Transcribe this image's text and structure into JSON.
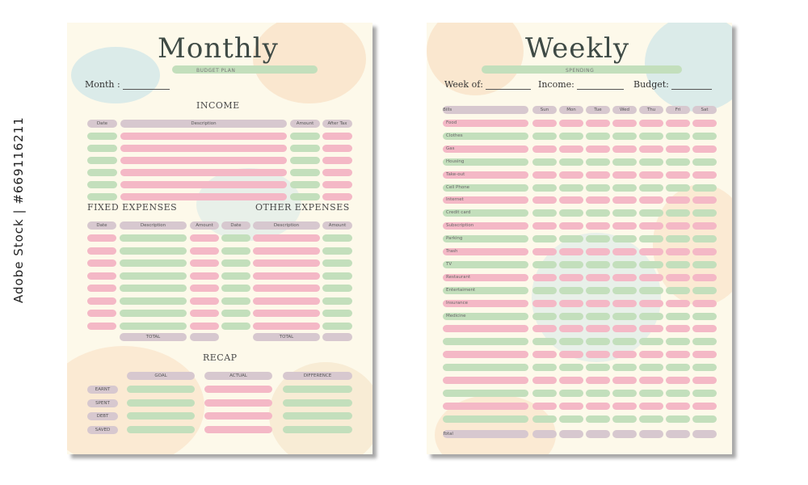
{
  "watermark": "Adobe Stock | #669116211",
  "colors": {
    "paper": "#fdf9ea",
    "pink": "#f4b8c6",
    "green": "#c3dfbc",
    "header": "#d7c8cf",
    "peach": "#f8d8b8",
    "blue": "#bfe0e8"
  },
  "monthly": {
    "title": "Monthly",
    "subtitle": "BUDGET PLAN",
    "month_label": "Month :",
    "income": {
      "heading": "INCOME",
      "columns": [
        "Date",
        "Description",
        "Amount",
        "After Tax"
      ],
      "row_count": 6
    },
    "fixed": {
      "heading": "FIXED EXPENSES",
      "columns": [
        "Date",
        "Description",
        "Amount"
      ],
      "total_label": "TOTAL",
      "row_count": 8
    },
    "other": {
      "heading": "OTHER EXPENSES",
      "columns": [
        "Date",
        "Description",
        "Amount"
      ],
      "total_label": "TOTAL",
      "row_count": 8
    },
    "recap": {
      "heading": "RECAP",
      "columns": [
        "GOAL",
        "ACTUAL",
        "DIFFERENCE"
      ],
      "rows": [
        "EARNT",
        "SPENT",
        "DEBT",
        "SAVED"
      ]
    }
  },
  "weekly": {
    "title": "Weekly",
    "subtitle": "SPENDING",
    "week_label": "Week of:",
    "income_label": "Income:",
    "budget_label": "Budget:",
    "bills_header": "Bills",
    "days": [
      "Sun",
      "Mon",
      "Tue",
      "Wed",
      "Thu",
      "Fri",
      "Sat"
    ],
    "bills": [
      "Food",
      "Clothes",
      "Gas",
      "Housing",
      "Take-out",
      "Cell Phone",
      "Internet",
      "Credit card",
      "Subscription",
      "Parking",
      "Trash",
      "TV",
      "Restaurant",
      "Entertaiment",
      "Insurance",
      "Medicine",
      "",
      "",
      "",
      "",
      "",
      "",
      "",
      ""
    ],
    "total_label": "Total"
  }
}
